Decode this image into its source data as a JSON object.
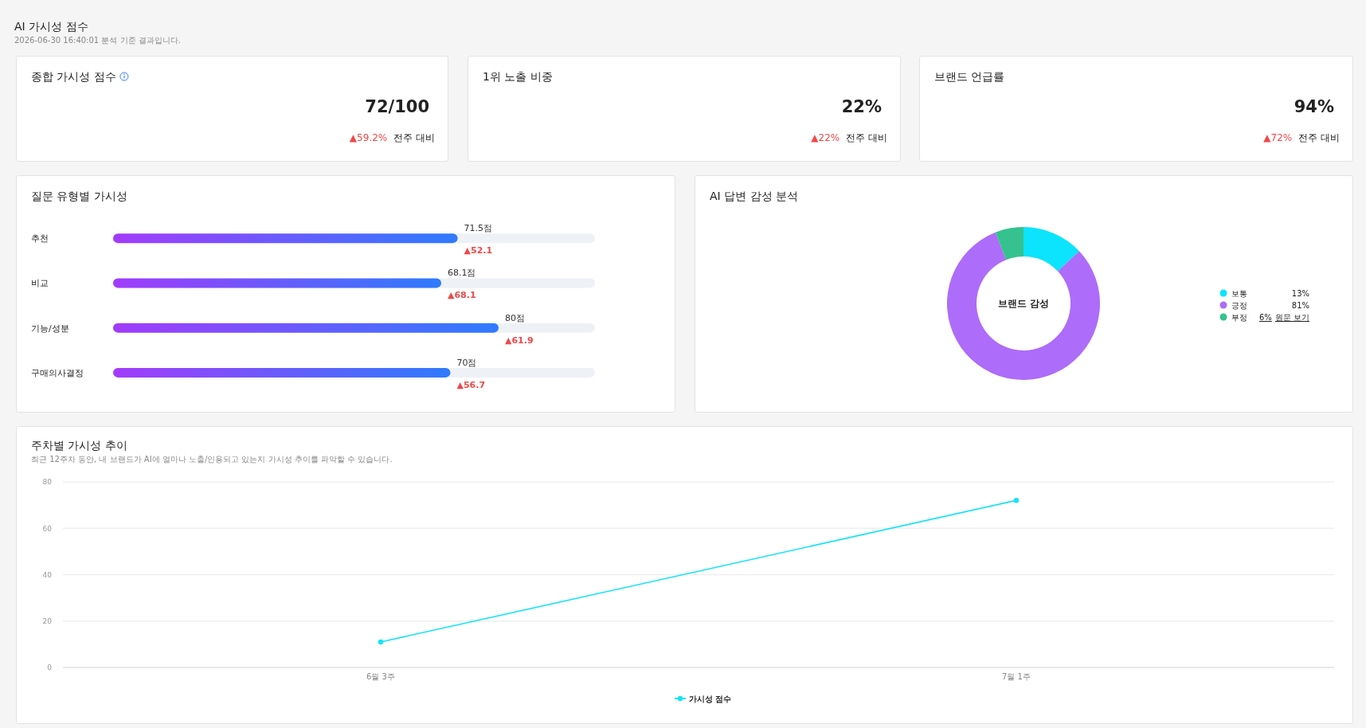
{
  "chart_data": [
    {
      "type": "other",
      "title": "AI 가시성 점수",
      "subtitle": "2026-06-30 16:40:01 분석 기준 결과입니다."
    },
    {
      "type": "other",
      "title": "종합 가시성 점수",
      "annotations": [
        "72/100",
        "▲59.2%",
        "전주 대비"
      ]
    },
    {
      "type": "other",
      "title": "1위 노출 비중",
      "annotations": [
        "22%",
        "▲22%",
        "전주 대비"
      ]
    },
    {
      "type": "other",
      "title": "브랜드 언급률",
      "annotations": [
        "94%",
        "▲72%",
        "전주 대비"
      ]
    },
    {
      "type": "bar",
      "orientation": "horizontal",
      "title": "질문 유형별 가시성",
      "categories": [
        "추천",
        "비교",
        "기능/성분",
        "구매의사결정"
      ],
      "xlim": [
        0,
        100
      ],
      "series": [
        {
          "color": "#a23bfc",
          "values": [
            71.5,
            68.1,
            80,
            70
          ],
          "value_labels": [
            "71.5점",
            "68.1점",
            "80점",
            "70점"
          ]
        }
      ],
      "annotations": [
        "▲52.1",
        "▲68.1",
        "▲61.9",
        "▲56.7"
      ]
    },
    {
      "type": "donut",
      "title": "AI 답변 감성 분석",
      "categories": [
        "보통",
        "긍정",
        "부정"
      ],
      "values": [
        13,
        81,
        6
      ],
      "colors": [
        "#0be4fc",
        "#ad6cf9",
        "#35c28e"
      ],
      "value_labels": [
        "13%",
        "81%",
        "6%"
      ],
      "legend": "right",
      "annotations": [
        "브랜드 감성",
        "원문 보기"
      ]
    },
    {
      "type": "line",
      "title": "주차별 가시성 추이",
      "subtitle": "최근 12주차 동안, 내 브랜드가 AI에 얼마나 노출/인용되고 있는지 가시성 추이를 파악할 수 있습니다.",
      "categories": [
        "6월 3주",
        "7월 1주"
      ],
      "ylim": [
        0,
        80
      ],
      "yticks": [
        0,
        20,
        40,
        60,
        80
      ],
      "grid": "y",
      "legend": "bottom",
      "marker": "circle",
      "series": [
        {
          "name": "가시성 점수",
          "color": "#12e3f8",
          "values": [
            11,
            72
          ]
        }
      ]
    }
  ]
}
